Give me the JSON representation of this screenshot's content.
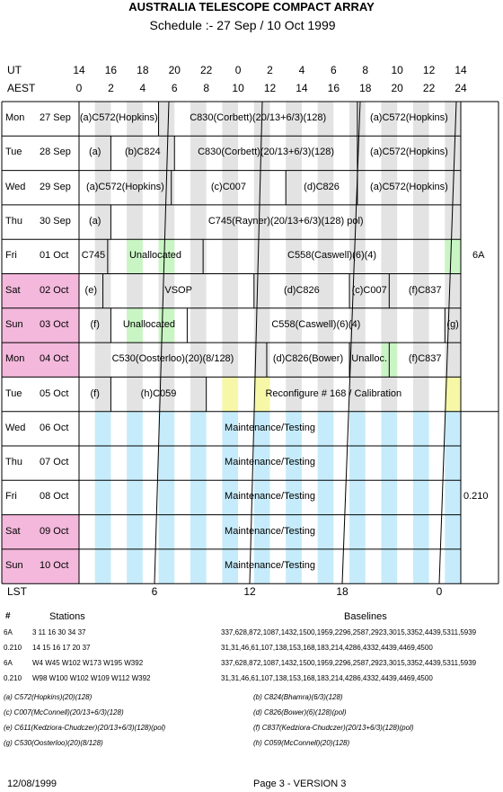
{
  "header": {
    "title": "AUSTRALIA TELESCOPE COMPACT ARRAY",
    "subtitle": "Schedule :- 27 Sep / 10 Oct 1999"
  },
  "axes": {
    "ut_label": "UT",
    "aest_label": "AEST",
    "lst_label": "LST",
    "ut_ticks": [
      "14",
      "16",
      "18",
      "20",
      "22",
      "0",
      "2",
      "4",
      "6",
      "8",
      "10",
      "12",
      "14"
    ],
    "aest_ticks": [
      "0",
      "2",
      "4",
      "6",
      "8",
      "10",
      "12",
      "14",
      "16",
      "18",
      "20",
      "22",
      "24"
    ],
    "lst_ticks": [
      "6",
      "12",
      "18",
      "0"
    ]
  },
  "schedule": {
    "days": [
      {
        "day": "Mon",
        "date": "27 Sep",
        "weekend": false,
        "maint": false,
        "hl": [],
        "blocks": [
          {
            "s": 0,
            "e": 5,
            "text": "(a)C572(Hopkins)"
          },
          {
            "s": 5,
            "e": 17.5,
            "text": "C830(Corbett)(20/13+6/3)(128)"
          },
          {
            "s": 17.5,
            "e": 24,
            "text": "(a)C572(Hopkins)"
          }
        ]
      },
      {
        "day": "Tue",
        "date": "28 Sep",
        "weekend": false,
        "maint": false,
        "hl": [],
        "blocks": [
          {
            "s": 0,
            "e": 2,
            "text": "(a)"
          },
          {
            "s": 2,
            "e": 6,
            "text": "(b)C824"
          },
          {
            "s": 6,
            "e": 17.5,
            "text": "C830(Corbett)(20/13+6/3)(128)"
          },
          {
            "s": 17.5,
            "e": 24,
            "text": "(a)C572(Hopkins)"
          }
        ]
      },
      {
        "day": "Wed",
        "date": "29 Sep",
        "weekend": false,
        "maint": false,
        "hl": [],
        "blocks": [
          {
            "s": 0,
            "e": 5.8,
            "text": "(a)C572(Hopkins)"
          },
          {
            "s": 5.8,
            "e": 13,
            "text": "(c)C007"
          },
          {
            "s": 13,
            "e": 17.5,
            "text": "(d)C826"
          },
          {
            "s": 17.5,
            "e": 24,
            "text": "(a)C572(Hopkins)"
          }
        ]
      },
      {
        "day": "Thu",
        "date": "30 Sep",
        "weekend": false,
        "maint": false,
        "hl": [],
        "blocks": [
          {
            "s": 0,
            "e": 2,
            "text": "(a)"
          },
          {
            "s": 2,
            "e": 24,
            "text": "C745(Rayner)(20/13+6/3)(128) pol)"
          }
        ]
      },
      {
        "day": "Fri",
        "date": "01 Oct",
        "weekend": false,
        "maint": false,
        "hl": [
          {
            "s": 3,
            "e": 4,
            "c": "green"
          },
          {
            "s": 5,
            "e": 6,
            "c": "green"
          },
          {
            "s": 23,
            "e": 24,
            "c": "green"
          }
        ],
        "blocks": [
          {
            "s": 0,
            "e": 1.8,
            "text": "C745"
          },
          {
            "s": 1.8,
            "e": 7.8,
            "text": "Unallocated"
          },
          {
            "s": 7.8,
            "e": 24,
            "text": "C558(Caswell)(6)(4)"
          }
        ]
      },
      {
        "day": "Sat",
        "date": "02 Oct",
        "weekend": true,
        "maint": false,
        "hl": [],
        "blocks": [
          {
            "s": 0,
            "e": 1.5,
            "text": "(e)"
          },
          {
            "s": 1.5,
            "e": 11,
            "text": "VSOP"
          },
          {
            "s": 11,
            "e": 17,
            "text": "(d)C826"
          },
          {
            "s": 17,
            "e": 19.5,
            "text": "(c)C007"
          },
          {
            "s": 19.5,
            "e": 24,
            "text": "(f)C837"
          }
        ]
      },
      {
        "day": "Sun",
        "date": "03 Oct",
        "weekend": true,
        "maint": false,
        "hl": [
          {
            "s": 3,
            "e": 4,
            "c": "green"
          },
          {
            "s": 5,
            "e": 6,
            "c": "green"
          }
        ],
        "blocks": [
          {
            "s": 0,
            "e": 2,
            "text": "(f)"
          },
          {
            "s": 2,
            "e": 6.8,
            "text": "Unallocated"
          },
          {
            "s": 6.8,
            "e": 23,
            "text": "C558(Caswell)(6)(4)"
          },
          {
            "s": 23,
            "e": 24,
            "text": "(g)"
          }
        ]
      },
      {
        "day": "Mon",
        "date": "04 Oct",
        "weekend": true,
        "maint": false,
        "hl": [
          {
            "s": 19,
            "e": 20,
            "c": "green"
          }
        ],
        "blocks": [
          {
            "s": 0,
            "e": 11.8,
            "text": "C530(Oosterloo)(20)(8/128)"
          },
          {
            "s": 11.8,
            "e": 17,
            "text": "(d)C826(Bower)"
          },
          {
            "s": 17,
            "e": 19.5,
            "text": "Unalloc."
          },
          {
            "s": 19.5,
            "e": 24,
            "text": "(f)C837"
          }
        ]
      },
      {
        "day": "Tue",
        "date": "05 Oct",
        "weekend": false,
        "maint": false,
        "hl": [
          {
            "s": 9,
            "e": 10,
            "c": "yellow"
          },
          {
            "s": 11,
            "e": 12,
            "c": "yellow"
          },
          {
            "s": 23,
            "e": 24,
            "c": "yellow"
          }
        ],
        "blocks": [
          {
            "s": 0,
            "e": 2,
            "text": "(f)"
          },
          {
            "s": 2,
            "e": 8,
            "text": "(h)C059"
          },
          {
            "s": 8,
            "e": 24,
            "text": "Reconfigure # 168 / Calibration"
          }
        ]
      },
      {
        "day": "Wed",
        "date": "06 Oct",
        "weekend": false,
        "maint": true,
        "hl": [],
        "blocks": [
          {
            "s": 0,
            "e": 24,
            "text": "Maintenance/Testing"
          }
        ]
      },
      {
        "day": "Thu",
        "date": "07 Oct",
        "weekend": false,
        "maint": true,
        "hl": [],
        "blocks": [
          {
            "s": 0,
            "e": 24,
            "text": "Maintenance/Testing"
          }
        ]
      },
      {
        "day": "Fri",
        "date": "08 Oct",
        "weekend": false,
        "maint": true,
        "hl": [],
        "blocks": [
          {
            "s": 0,
            "e": 24,
            "text": "Maintenance/Testing"
          }
        ]
      },
      {
        "day": "Sat",
        "date": "09 Oct",
        "weekend": true,
        "maint": true,
        "hl": [],
        "blocks": [
          {
            "s": 0,
            "e": 24,
            "text": "Maintenance/Testing"
          }
        ]
      },
      {
        "day": "Sun",
        "date": "10 Oct",
        "weekend": true,
        "maint": true,
        "hl": [],
        "blocks": [
          {
            "s": 0,
            "e": 24,
            "text": "Maintenance/Testing"
          }
        ]
      }
    ],
    "config_top": "6A",
    "config_bottom": "0.210"
  },
  "stations_table": {
    "col_hash": "#",
    "col_stations": "Stations",
    "col_baselines": "Baselines",
    "rows": [
      {
        "cfg": "6A",
        "stations": "3 11 16 30 34 37",
        "baselines": "337,628,872,1087,1432,1500,1959,2296,2587,2923,3015,3352,4439,5311,5939"
      },
      {
        "cfg": "0.210",
        "stations": "14 15 16 17 20 37",
        "baselines": "31,31,46,61,107,138,153,168,183,214,4286,4332,4439,4469,4500"
      },
      {
        "cfg": "6A",
        "stations": "W4 W45 W102 W173 W195 W392",
        "baselines": "337,628,872,1087,1432,1500,1959,2296,2587,2923,3015,3352,4439,5311,5939"
      },
      {
        "cfg": "0.210",
        "stations": "W98 W100 W102 W109 W112 W392",
        "baselines": "31,31,46,61,107,138,153,168,183,214,4286,4332,4439,4469,4500"
      }
    ]
  },
  "footnotes": [
    [
      "(a) C572(Hopkins)(20)(128)",
      "(b) C824(Bhamra)(6/3)(128)"
    ],
    [
      "(c) C007(McConnell)(20/13+6/3)(128)",
      "(d) C826(Bower)(6)(128)(pol)"
    ],
    [
      "(e) C611(Kedziora-Chudczer)(20/13+6/3)(128)(pol)",
      "(f) C837(Kedziora-Chudczer)(20/13+6/3)(128)(pol)"
    ],
    [
      "(g) C530(Oosterloo)(20)(8/128)",
      "(h) C059(McConnell)(20)(128)"
    ]
  ],
  "footer": {
    "date": "12/08/1999",
    "page": "Page 3 - VERSION 3"
  },
  "colors": {
    "weekend": "#f4b8dc",
    "stripe_gray": "#e3e3e3",
    "stripe_blue": "#c6ecfb",
    "green": "#c9f5c4",
    "yellow": "#f7f7a8"
  }
}
